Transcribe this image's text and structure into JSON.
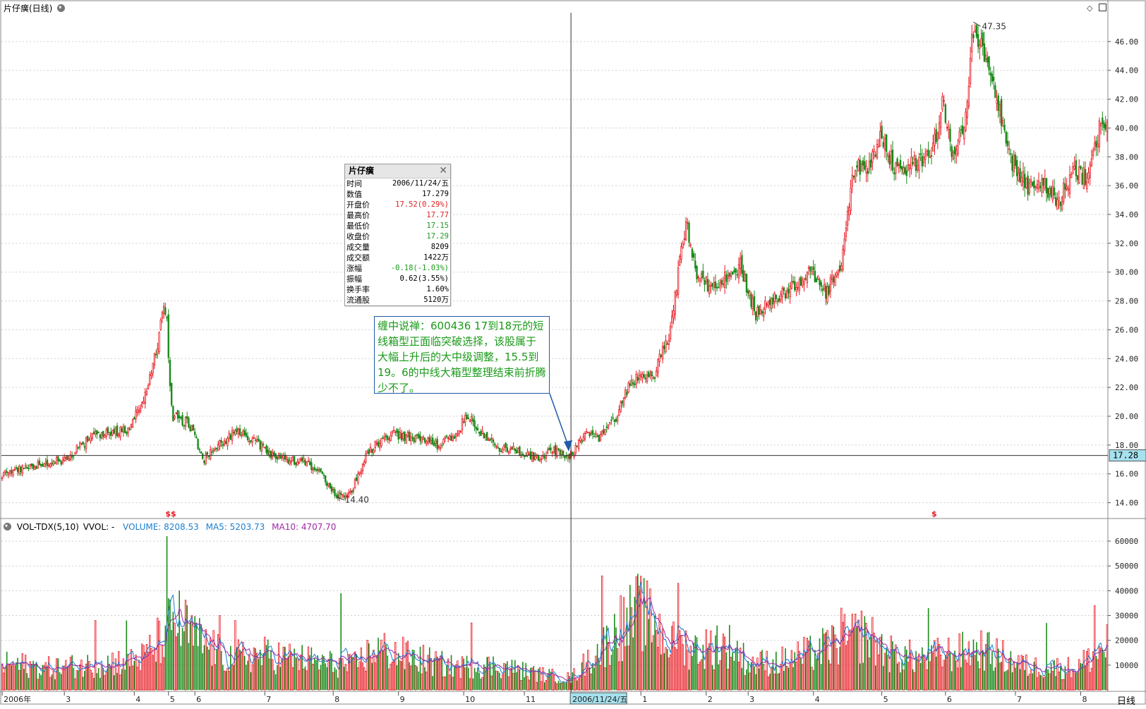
{
  "window": {
    "title": "片仔癀(日线)",
    "period_tab": "日线"
  },
  "indicator": {
    "name": "VOL-TDX(5,10)",
    "vvol": "VVOL: -",
    "volume": "VOLUME: 8208.53",
    "ma5": "MA5: 5203.73",
    "ma10": "MA10: 4707.70",
    "colors": {
      "volume": "#1b7fd1",
      "ma5": "#1b7fd1",
      "ma10": "#9b2aa3"
    }
  },
  "tooltip": {
    "title": "片仔癀",
    "rows": [
      {
        "label": "时间",
        "value": "2006/11/24/五",
        "color": "#000000"
      },
      {
        "label": "数值",
        "value": "17.279",
        "color": "#000000"
      },
      {
        "label": "开盘价",
        "value": "17.52(0.29%)",
        "color": "#e02020"
      },
      {
        "label": "最高价",
        "value": "17.77",
        "color": "#e02020"
      },
      {
        "label": "最低价",
        "value": "17.15",
        "color": "#1a9a1a"
      },
      {
        "label": "收盘价",
        "value": "17.29",
        "color": "#1a9a1a"
      },
      {
        "label": "成交量",
        "value": "8209",
        "color": "#000000"
      },
      {
        "label": "成交额",
        "value": "1422万",
        "color": "#000000"
      },
      {
        "label": "涨幅",
        "value": "-0.18(-1.03%)",
        "color": "#1a9a1a"
      },
      {
        "label": "振幅",
        "value": "0.62(3.55%)",
        "color": "#000000"
      },
      {
        "label": "换手率",
        "value": "1.60%",
        "color": "#000000"
      },
      {
        "label": "流通股",
        "value": "5120万",
        "color": "#000000"
      }
    ]
  },
  "annotation": {
    "text": "缠中说禅：600436 17到18元的短线箱型正面临突破选择，该股属于大幅上升后的大中级调整，15.5到19。6的中线大箱型整理结束前折腾少不了。"
  },
  "colors": {
    "up": "#e8161e",
    "down": "#1a8a1a",
    "grid": "#cfcfcf",
    "cursor": "#333333",
    "price_tag_bg": "#a6e1ee"
  },
  "markers": {
    "high_label": "47.35",
    "low_label": "14.40",
    "s_marks": [
      "$$",
      "$"
    ]
  },
  "chart_data": [
    {
      "type": "candlestick",
      "title": "片仔癀(日线)",
      "ylim": [
        13.0,
        48.0
      ],
      "y_ticks": [
        14.0,
        16.0,
        18.0,
        20.0,
        22.0,
        24.0,
        26.0,
        28.0,
        30.0,
        32.0,
        34.0,
        36.0,
        38.0,
        40.0,
        42.0,
        44.0,
        46.0
      ],
      "x_tick_labels": [
        "2006年",
        "3",
        "4",
        "5",
        "6",
        "7",
        "8",
        "9",
        "10",
        "11",
        "2006/11/24/五",
        "1",
        "2",
        "3",
        "4",
        "5",
        "6",
        "7",
        "8"
      ],
      "x_tick_index": [
        0,
        40,
        85,
        107,
        124,
        169,
        213,
        255,
        297,
        336,
        366,
        411,
        453,
        480,
        522,
        566,
        607,
        652,
        694
      ],
      "current_price": 17.28,
      "annotated_high": 47.35,
      "annotated_low": 14.4,
      "anchors": [
        [
          0,
          16.0
        ],
        [
          20,
          16.5
        ],
        [
          40,
          17.0
        ],
        [
          60,
          18.8
        ],
        [
          80,
          19.0
        ],
        [
          92,
          21.5
        ],
        [
          100,
          25.0
        ],
        [
          104,
          27.5
        ],
        [
          106,
          27.0
        ],
        [
          108,
          22.0
        ],
        [
          110,
          20.0
        ],
        [
          120,
          19.5
        ],
        [
          130,
          17.0
        ],
        [
          140,
          18.0
        ],
        [
          150,
          19.0
        ],
        [
          165,
          18.0
        ],
        [
          175,
          17.2
        ],
        [
          195,
          16.8
        ],
        [
          205,
          16.0
        ],
        [
          215,
          14.4
        ],
        [
          225,
          14.8
        ],
        [
          235,
          17.5
        ],
        [
          250,
          18.8
        ],
        [
          265,
          18.5
        ],
        [
          280,
          18.0
        ],
        [
          293,
          18.6
        ],
        [
          298,
          20.2
        ],
        [
          310,
          18.6
        ],
        [
          320,
          17.8
        ],
        [
          335,
          17.5
        ],
        [
          345,
          17.2
        ],
        [
          355,
          17.6
        ],
        [
          366,
          17.28
        ],
        [
          375,
          18.7
        ],
        [
          385,
          18.5
        ],
        [
          395,
          20.0
        ],
        [
          405,
          22.5
        ],
        [
          420,
          23.0
        ],
        [
          430,
          26.0
        ],
        [
          435,
          30.0
        ],
        [
          440,
          33.5
        ],
        [
          447,
          30.0
        ],
        [
          455,
          29.0
        ],
        [
          465,
          29.5
        ],
        [
          475,
          30.5
        ],
        [
          485,
          27.0
        ],
        [
          495,
          28.0
        ],
        [
          510,
          29.0
        ],
        [
          520,
          30.0
        ],
        [
          530,
          28.5
        ],
        [
          540,
          30.5
        ],
        [
          548,
          37.0
        ],
        [
          558,
          37.5
        ],
        [
          565,
          39.5
        ],
        [
          575,
          37.0
        ],
        [
          585,
          37.5
        ],
        [
          598,
          38.0
        ],
        [
          605,
          42.0
        ],
        [
          612,
          38.0
        ],
        [
          620,
          41.0
        ],
        [
          625,
          47.0
        ],
        [
          632,
          45.0
        ],
        [
          640,
          42.0
        ],
        [
          648,
          38.0
        ],
        [
          660,
          36.0
        ],
        [
          670,
          36.0
        ],
        [
          680,
          35.0
        ],
        [
          690,
          37.0
        ],
        [
          698,
          36.5
        ],
        [
          706,
          40.0
        ],
        [
          711,
          40.2
        ]
      ],
      "candle_count": 712
    },
    {
      "type": "bar",
      "title": "VOL-TDX(5,10)",
      "ylim": [
        0,
        64000
      ],
      "y_ticks": [
        10000,
        20000,
        30000,
        40000,
        50000,
        60000
      ],
      "series": [
        {
          "name": "VOLUME",
          "last": 8208.53
        },
        {
          "name": "MA5",
          "last": 5203.73
        },
        {
          "name": "MA10",
          "last": 4707.7
        }
      ],
      "base_anchors": [
        [
          0,
          11000
        ],
        [
          30,
          9000
        ],
        [
          60,
          10500
        ],
        [
          90,
          13000
        ],
        [
          105,
          22000
        ],
        [
          110,
          30000
        ],
        [
          125,
          21000
        ],
        [
          145,
          13500
        ],
        [
          170,
          14500
        ],
        [
          200,
          12000
        ],
        [
          225,
          9500
        ],
        [
          240,
          17000
        ],
        [
          260,
          14000
        ],
        [
          290,
          9500
        ],
        [
          320,
          10000
        ],
        [
          345,
          6500
        ],
        [
          366,
          4700
        ],
        [
          380,
          14000
        ],
        [
          400,
          26000
        ],
        [
          410,
          33000
        ],
        [
          430,
          19000
        ],
        [
          450,
          17000
        ],
        [
          470,
          18500
        ],
        [
          480,
          11000
        ],
        [
          500,
          11500
        ],
        [
          520,
          15000
        ],
        [
          540,
          20000
        ],
        [
          555,
          23000
        ],
        [
          570,
          15000
        ],
        [
          590,
          13000
        ],
        [
          610,
          15000
        ],
        [
          630,
          17000
        ],
        [
          660,
          9500
        ],
        [
          690,
          9000
        ],
        [
          705,
          15000
        ],
        [
          711,
          19000
        ]
      ],
      "spikes": [
        [
          106,
          62000
        ],
        [
          107,
          37000
        ],
        [
          105,
          26000
        ],
        [
          100,
          29000
        ],
        [
          218,
          39000
        ],
        [
          386,
          46000
        ],
        [
          398,
          38000
        ],
        [
          435,
          43000
        ],
        [
          540,
          33000
        ],
        [
          596,
          33000
        ],
        [
          672,
          27000
        ],
        [
          703,
          34000
        ],
        [
          60,
          28000
        ],
        [
          80,
          28000
        ],
        [
          140,
          30000
        ],
        [
          150,
          28000
        ],
        [
          302,
          27000
        ],
        [
          420,
          30000
        ],
        [
          460,
          26000
        ]
      ]
    }
  ]
}
